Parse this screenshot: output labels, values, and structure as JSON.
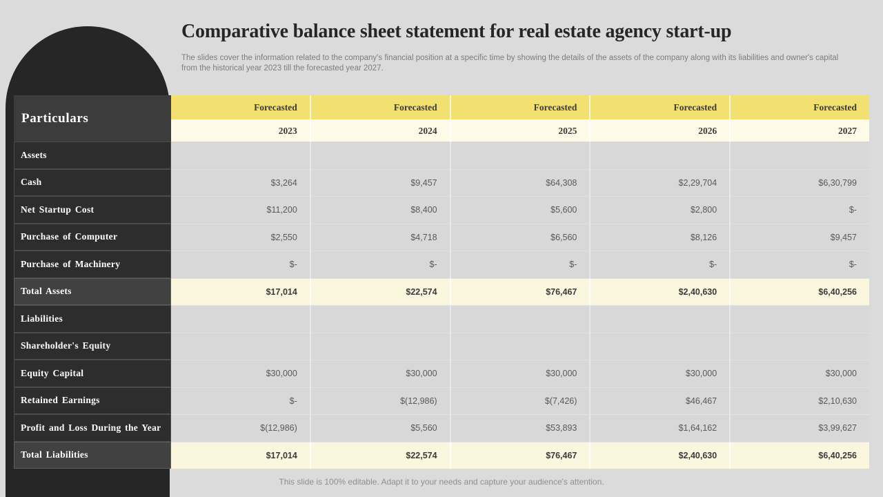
{
  "slide": {
    "title": "Comparative balance sheet statement for real estate agency start-up",
    "subtitle": "The slides cover the information related to the company's financial position at a specific time by showing the details of the assets of the company along with its liabilities and owner's capital from the historical year 2023 till the forecasted year 2027.",
    "footer": "This slide is 100% editable. Adapt it to your needs and capture your audience's attention."
  },
  "table": {
    "row_header_title": "Particulars",
    "column_group_label": "Forecasted",
    "years": [
      "2023",
      "2024",
      "2025",
      "2026",
      "2027"
    ],
    "rows": [
      {
        "label": "Assets",
        "type": "section",
        "values": [
          "",
          "",
          "",
          "",
          ""
        ]
      },
      {
        "label": "Cash",
        "type": "data",
        "values": [
          "$3,264",
          "$9,457",
          "$64,308",
          "$2,29,704",
          "$6,30,799"
        ]
      },
      {
        "label": "Net Startup Cost",
        "type": "data",
        "values": [
          "$11,200",
          "$8,400",
          "$5,600",
          "$2,800",
          "$-"
        ]
      },
      {
        "label": "Purchase of Computer",
        "type": "data",
        "values": [
          "$2,550",
          "$4,718",
          "$6,560",
          "$8,126",
          "$9,457"
        ]
      },
      {
        "label": "Purchase of Machinery",
        "type": "data",
        "values": [
          "$-",
          "$-",
          "$-",
          "$-",
          "$-"
        ]
      },
      {
        "label": "Total Assets",
        "type": "total",
        "values": [
          "$17,014",
          "$22,574",
          "$76,467",
          "$2,40,630",
          "$6,40,256"
        ]
      },
      {
        "label": "Liabilities",
        "type": "section",
        "values": [
          "",
          "",
          "",
          "",
          ""
        ]
      },
      {
        "label": "Shareholder's Equity",
        "type": "section",
        "values": [
          "",
          "",
          "",
          "",
          ""
        ]
      },
      {
        "label": "Equity Capital",
        "type": "data",
        "values": [
          "$30,000",
          "$30,000",
          "$30,000",
          "$30,000",
          "$30,000"
        ]
      },
      {
        "label": "Retained Earnings",
        "type": "data",
        "values": [
          "$-",
          "$(12,986)",
          "$(7,426)",
          "$46,467",
          "$2,10,630"
        ]
      },
      {
        "label": "Profit and Loss During the Year",
        "type": "data",
        "values": [
          "$(12,986)",
          "$5,560",
          "$53,893",
          "$1,64,162",
          "$3,99,627"
        ]
      },
      {
        "label": "Total Liabilities",
        "type": "total",
        "values": [
          "$17,014",
          "$22,574",
          "$76,467",
          "$2,40,630",
          "$6,40,256"
        ]
      }
    ]
  },
  "colors": {
    "slide_bg": "#DBDBDB",
    "dark_arch": "#262626",
    "dark_cell": "#2D2D2D",
    "dark_cell_header": "#3C3C3C",
    "dark_cell_total": "#414141",
    "accent_yellow": "#F2E170",
    "cream_light": "#FDFAE8",
    "cream": "#FBF6DE",
    "data_cell": "#D8D8D8",
    "value_text": "#595959"
  }
}
